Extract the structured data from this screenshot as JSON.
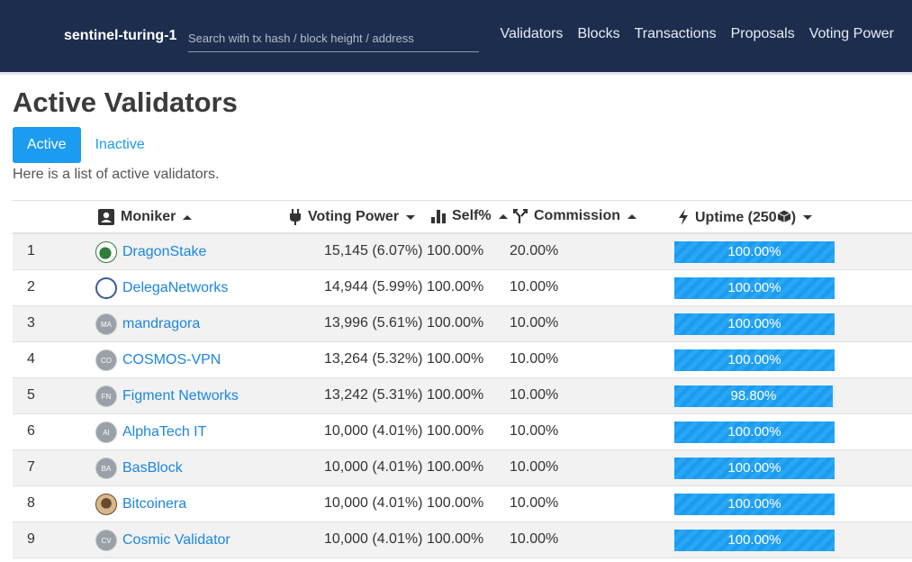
{
  "nav": {
    "brand": "sentinel-turing-1",
    "search_placeholder": "Search with tx hash / block height / address",
    "links": [
      "Validators",
      "Blocks",
      "Transactions",
      "Proposals",
      "Voting Power"
    ]
  },
  "page": {
    "title": "Active Validators",
    "tabs": [
      {
        "label": "Active",
        "active": true
      },
      {
        "label": "Inactive",
        "active": false
      }
    ],
    "description": "Here is a list of active validators."
  },
  "table": {
    "columns": {
      "moniker": "Moniker",
      "voting_power": "Voting Power",
      "self": "Self%",
      "commission": "Commission",
      "uptime": "Uptime (250"
    },
    "rows": [
      {
        "rank": "1",
        "avatar": "",
        "moniker": "DragonStake",
        "voting_power": "15,145 (6.07%)",
        "self": "100.00%",
        "commission": "20.00%",
        "uptime": "100.00%",
        "uptime_fraction": 1.0
      },
      {
        "rank": "2",
        "avatar": "",
        "moniker": "DelegaNetworks",
        "voting_power": "14,944 (5.99%)",
        "self": "100.00%",
        "commission": "10.00%",
        "uptime": "100.00%",
        "uptime_fraction": 1.0
      },
      {
        "rank": "3",
        "avatar": "MA",
        "moniker": "mandragora",
        "voting_power": "13,996 (5.61%)",
        "self": "100.00%",
        "commission": "10.00%",
        "uptime": "100.00%",
        "uptime_fraction": 1.0
      },
      {
        "rank": "4",
        "avatar": "CO",
        "moniker": "COSMOS-VPN",
        "voting_power": "13,264 (5.32%)",
        "self": "100.00%",
        "commission": "10.00%",
        "uptime": "100.00%",
        "uptime_fraction": 1.0
      },
      {
        "rank": "5",
        "avatar": "FN",
        "moniker": "Figment Networks",
        "voting_power": "13,242 (5.31%)",
        "self": "100.00%",
        "commission": "10.00%",
        "uptime": "98.80%",
        "uptime_fraction": 0.988
      },
      {
        "rank": "6",
        "avatar": "AI",
        "moniker": "AlphaTech IT",
        "voting_power": "10,000 (4.01%)",
        "self": "100.00%",
        "commission": "10.00%",
        "uptime": "100.00%",
        "uptime_fraction": 1.0
      },
      {
        "rank": "7",
        "avatar": "BA",
        "moniker": "BasBlock",
        "voting_power": "10,000 (4.01%)",
        "self": "100.00%",
        "commission": "10.00%",
        "uptime": "100.00%",
        "uptime_fraction": 1.0
      },
      {
        "rank": "8",
        "avatar": "",
        "moniker": "Bitcoinera",
        "voting_power": "10,000 (4.01%)",
        "self": "100.00%",
        "commission": "10.00%",
        "uptime": "100.00%",
        "uptime_fraction": 1.0
      },
      {
        "rank": "9",
        "avatar": "CV",
        "moniker": "Cosmic Validator",
        "voting_power": "10,000 (4.01%)",
        "self": "100.00%",
        "commission": "10.00%",
        "uptime": "100.00%",
        "uptime_fraction": 1.0
      }
    ]
  }
}
